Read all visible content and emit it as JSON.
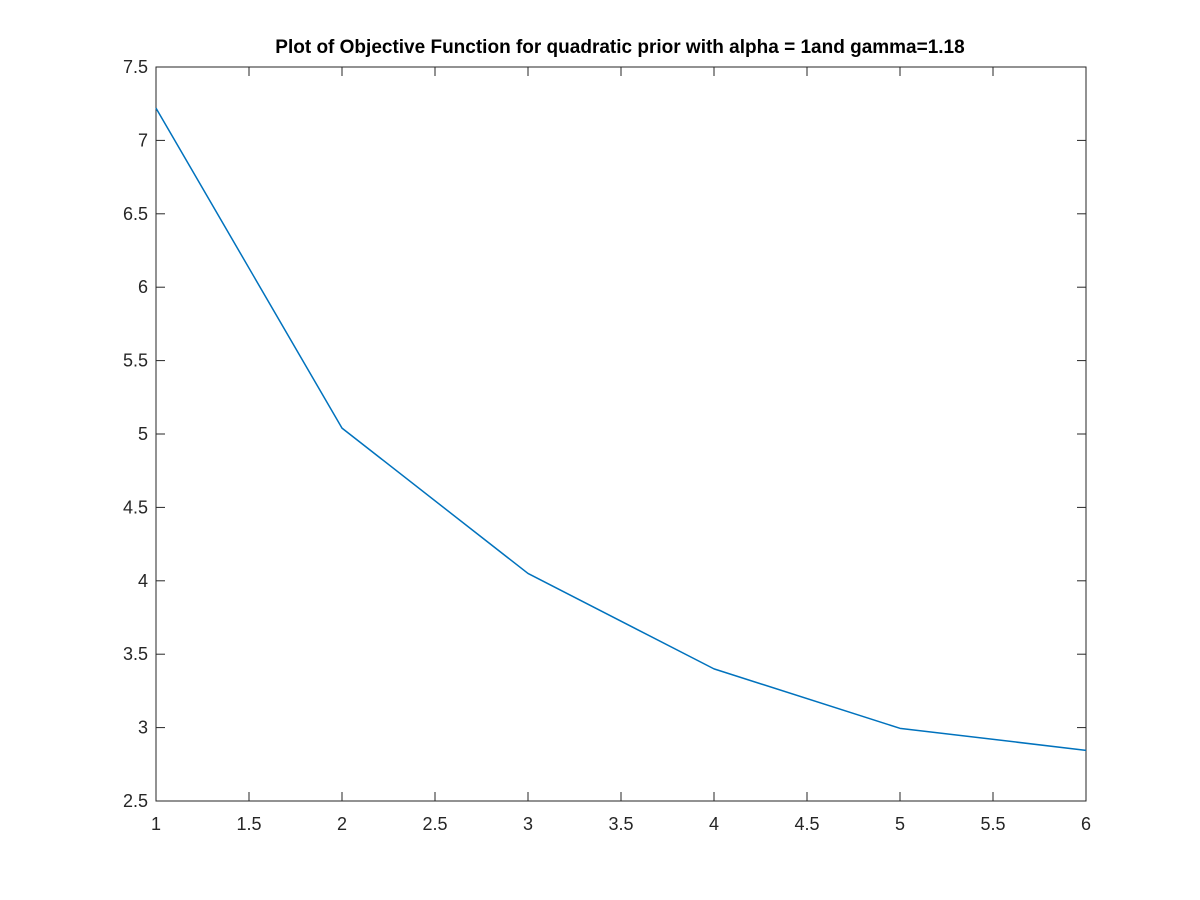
{
  "chart_data": {
    "type": "line",
    "title": "Plot of Objective Function for quadratic prior with alpha = 1and gamma=1.18",
    "xlabel": "",
    "ylabel": "",
    "xlim": [
      1,
      6
    ],
    "ylim": [
      2.5,
      7.5
    ],
    "xticks": [
      1,
      1.5,
      2,
      2.5,
      3,
      3.5,
      4,
      4.5,
      5,
      5.5,
      6
    ],
    "xtick_labels": [
      "1",
      "1.5",
      "2",
      "2.5",
      "3",
      "3.5",
      "4",
      "4.5",
      "5",
      "5.5",
      "6"
    ],
    "yticks": [
      2.5,
      3,
      3.5,
      4,
      4.5,
      5,
      5.5,
      6,
      6.5,
      7,
      7.5
    ],
    "ytick_labels": [
      "2.5",
      "3",
      "3.5",
      "4",
      "4.5",
      "5",
      "5.5",
      "6",
      "6.5",
      "7",
      "7.5"
    ],
    "grid": false,
    "box": true,
    "series": [
      {
        "x": [
          1,
          2,
          3,
          4,
          5,
          6
        ],
        "y": [
          7.22,
          5.04,
          4.05,
          3.4,
          2.995,
          2.845
        ],
        "color": "#0072BD"
      }
    ]
  }
}
